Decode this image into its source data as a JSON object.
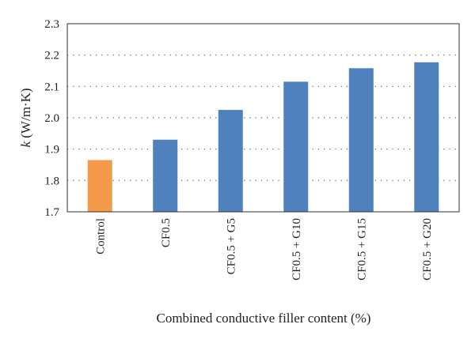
{
  "chart_data": {
    "type": "bar",
    "categories": [
      "Control",
      "CF0.5",
      "CF0.5 + G5",
      "CF0.5 + G10",
      "CF0.5 + G15",
      "CF0.5 + G20"
    ],
    "values": [
      1.865,
      1.93,
      2.025,
      2.115,
      2.158,
      2.177
    ],
    "bar_colors": [
      "#F5994A",
      "#4F81BD",
      "#4F81BD",
      "#4F81BD",
      "#4F81BD",
      "#4F81BD"
    ],
    "ylim": [
      1.7,
      2.3
    ],
    "yticks": [
      "1.7",
      "1.8",
      "1.9",
      "2.0",
      "2.1",
      "2.2",
      "2.3"
    ],
    "ylabel_symbol": "k",
    "ylabel_unit": " (W/m·K)",
    "xlabel": "Combined conductive filler content (%)",
    "grid": "horizontal-dotted",
    "legend": "none"
  }
}
